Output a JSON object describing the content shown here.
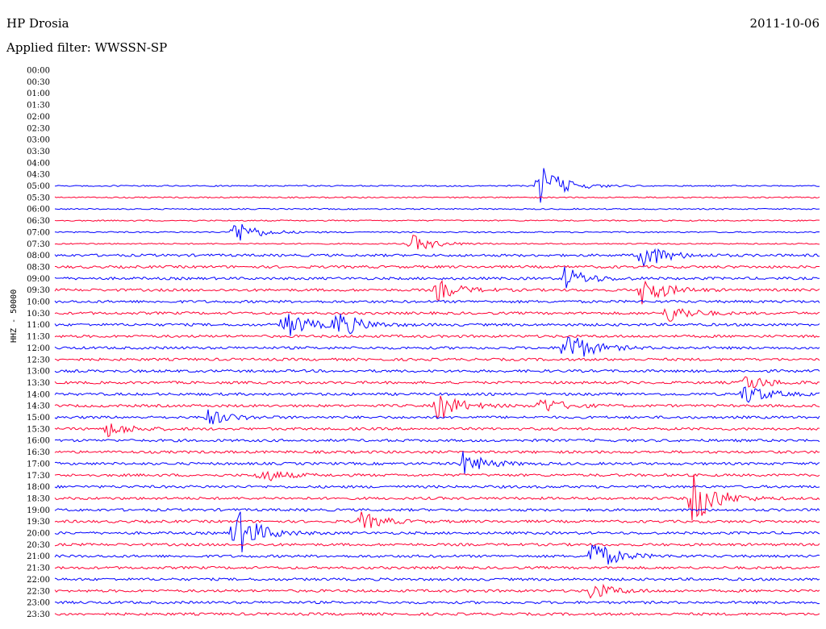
{
  "header": {
    "station": "HP Drosia",
    "date": "2011-10-06",
    "filter_label": "Applied filter:",
    "filter_value": "WWSSN-SP"
  },
  "colors": {
    "even_trace": "#ff0033",
    "odd_trace": "#0000ff"
  },
  "chart_data": {
    "type": "helicorder",
    "title": "HP Drosia",
    "ylabel": "HHZ - 50000",
    "row_interval_minutes": 30,
    "row_labels": [
      "00:00",
      "00:30",
      "01:00",
      "01:30",
      "02:00",
      "02:30",
      "03:00",
      "03:30",
      "04:00",
      "04:30",
      "05:00",
      "05:30",
      "06:00",
      "06:30",
      "07:00",
      "07:30",
      "08:00",
      "08:30",
      "09:00",
      "09:30",
      "10:00",
      "10:30",
      "11:00",
      "11:30",
      "12:00",
      "12:30",
      "13:00",
      "13:30",
      "14:00",
      "14:30",
      "15:00",
      "15:30",
      "16:00",
      "16:30",
      "17:00",
      "17:30",
      "18:00",
      "18:30",
      "19:00",
      "19:30",
      "20:00",
      "20:30",
      "21:00",
      "21:30",
      "22:00",
      "22:30",
      "23:00",
      "23:30"
    ],
    "first_row_with_data": "05:00",
    "trace_colors": [
      "#0000ff",
      "#ff0033"
    ],
    "events": [
      {
        "row": "05:00",
        "minute": 19,
        "amplitude": 2.0
      },
      {
        "row": "07:00",
        "minute": 7,
        "amplitude": 1.2
      },
      {
        "row": "07:30",
        "minute": 14,
        "amplitude": 0.8
      },
      {
        "row": "08:00",
        "minute": 23,
        "amplitude": 1.3
      },
      {
        "row": "09:00",
        "minute": 20,
        "amplitude": 1.0
      },
      {
        "row": "09:30",
        "minute": 23,
        "amplitude": 1.4
      },
      {
        "row": "09:30",
        "minute": 15,
        "amplitude": 0.9
      },
      {
        "row": "10:30",
        "minute": 24,
        "amplitude": 0.9
      },
      {
        "row": "11:00",
        "minute": 9,
        "amplitude": 1.3
      },
      {
        "row": "11:00",
        "minute": 11,
        "amplitude": 1.3
      },
      {
        "row": "12:00",
        "minute": 20,
        "amplitude": 1.8
      },
      {
        "row": "13:30",
        "minute": 27,
        "amplitude": 0.8
      },
      {
        "row": "14:00",
        "minute": 27,
        "amplitude": 1.0
      },
      {
        "row": "14:30",
        "minute": 15,
        "amplitude": 1.3
      },
      {
        "row": "14:30",
        "minute": 19,
        "amplitude": 0.8
      },
      {
        "row": "15:00",
        "minute": 6,
        "amplitude": 0.7
      },
      {
        "row": "15:30",
        "minute": 2,
        "amplitude": 0.7
      },
      {
        "row": "17:00",
        "minute": 16,
        "amplitude": 1.0
      },
      {
        "row": "17:30",
        "minute": 8,
        "amplitude": 0.7
      },
      {
        "row": "18:30",
        "minute": 25,
        "amplitude": 2.5
      },
      {
        "row": "19:30",
        "minute": 12,
        "amplitude": 0.8
      },
      {
        "row": "20:00",
        "minute": 7,
        "amplitude": 2.5
      },
      {
        "row": "21:00",
        "minute": 21,
        "amplitude": 1.6
      },
      {
        "row": "22:30",
        "minute": 21,
        "amplitude": 0.8
      }
    ]
  }
}
